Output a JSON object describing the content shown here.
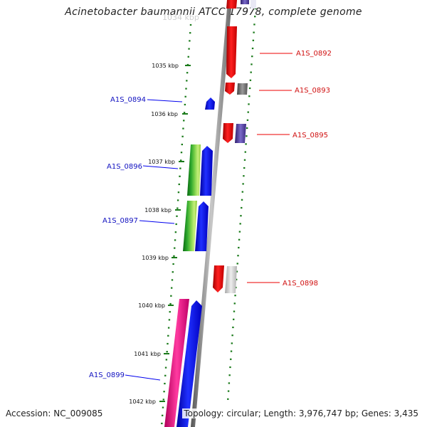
{
  "title": "Acinetobacter baumannii ATCC 17978, complete genome",
  "footer": {
    "accession": "Accession: NC_009085",
    "summary": "Topology: circular; Length: 3,976,747 bp; Genes: 3,435"
  },
  "scale_labels": [
    "1035 kbp",
    "1036 kbp",
    "1037 kbp",
    "1038 kbp",
    "1039 kbp",
    "1040 kbp",
    "1041 kbp",
    "1042 kbp"
  ],
  "genes_right": [
    "A1S_0892",
    "A1S_0893",
    "A1S_0895",
    "A1S_0898"
  ],
  "genes_left": [
    "A1S_0894",
    "A1S_0896",
    "A1S_0897",
    "A1S_0899"
  ],
  "colors": {
    "forward": "#0000ee",
    "reverse": "#ee0000",
    "forward_label": "#1010c0",
    "reverse_label": "#d01010",
    "axis": "#777777",
    "ticks": "#1a7a1a"
  }
}
